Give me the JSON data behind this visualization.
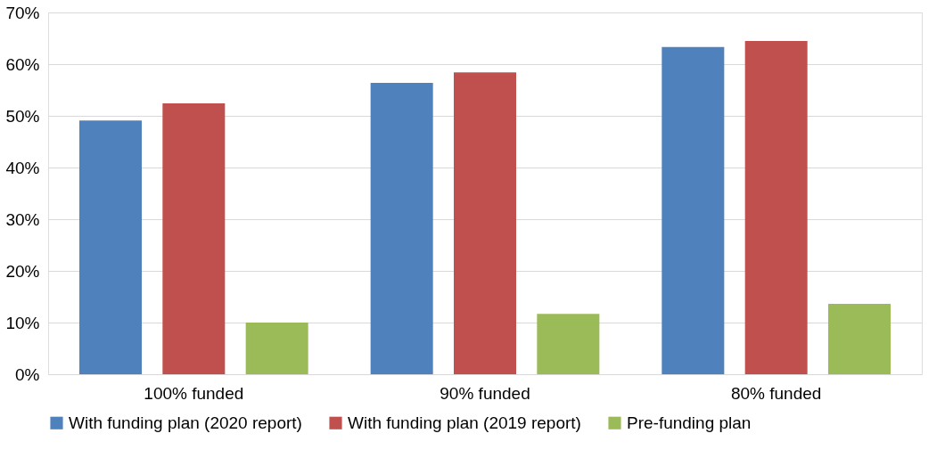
{
  "chart_data": {
    "type": "bar",
    "categories": [
      "100% funded",
      "90% funded",
      "80% funded"
    ],
    "series": [
      {
        "name": "With funding plan (2020 report)",
        "color": "#4f81bd",
        "values": [
          49.1,
          56.4,
          63.3
        ]
      },
      {
        "name": "With funding plan (2019 report)",
        "color": "#c0504d",
        "values": [
          52.4,
          58.4,
          64.5
        ]
      },
      {
        "name": "Pre-funding plan",
        "color": "#9bbb59",
        "values": [
          10.0,
          11.7,
          13.6
        ]
      }
    ],
    "ylim": [
      0,
      70
    ],
    "yticks": [
      {
        "value": 0,
        "label": "0%"
      },
      {
        "value": 10,
        "label": "10%"
      },
      {
        "value": 20,
        "label": "20%"
      },
      {
        "value": 30,
        "label": "30%"
      },
      {
        "value": 40,
        "label": "40%"
      },
      {
        "value": 50,
        "label": "50%"
      },
      {
        "value": 60,
        "label": "60%"
      },
      {
        "value": 70,
        "label": "70%"
      }
    ],
    "grid": "y",
    "legend": "bottom"
  }
}
